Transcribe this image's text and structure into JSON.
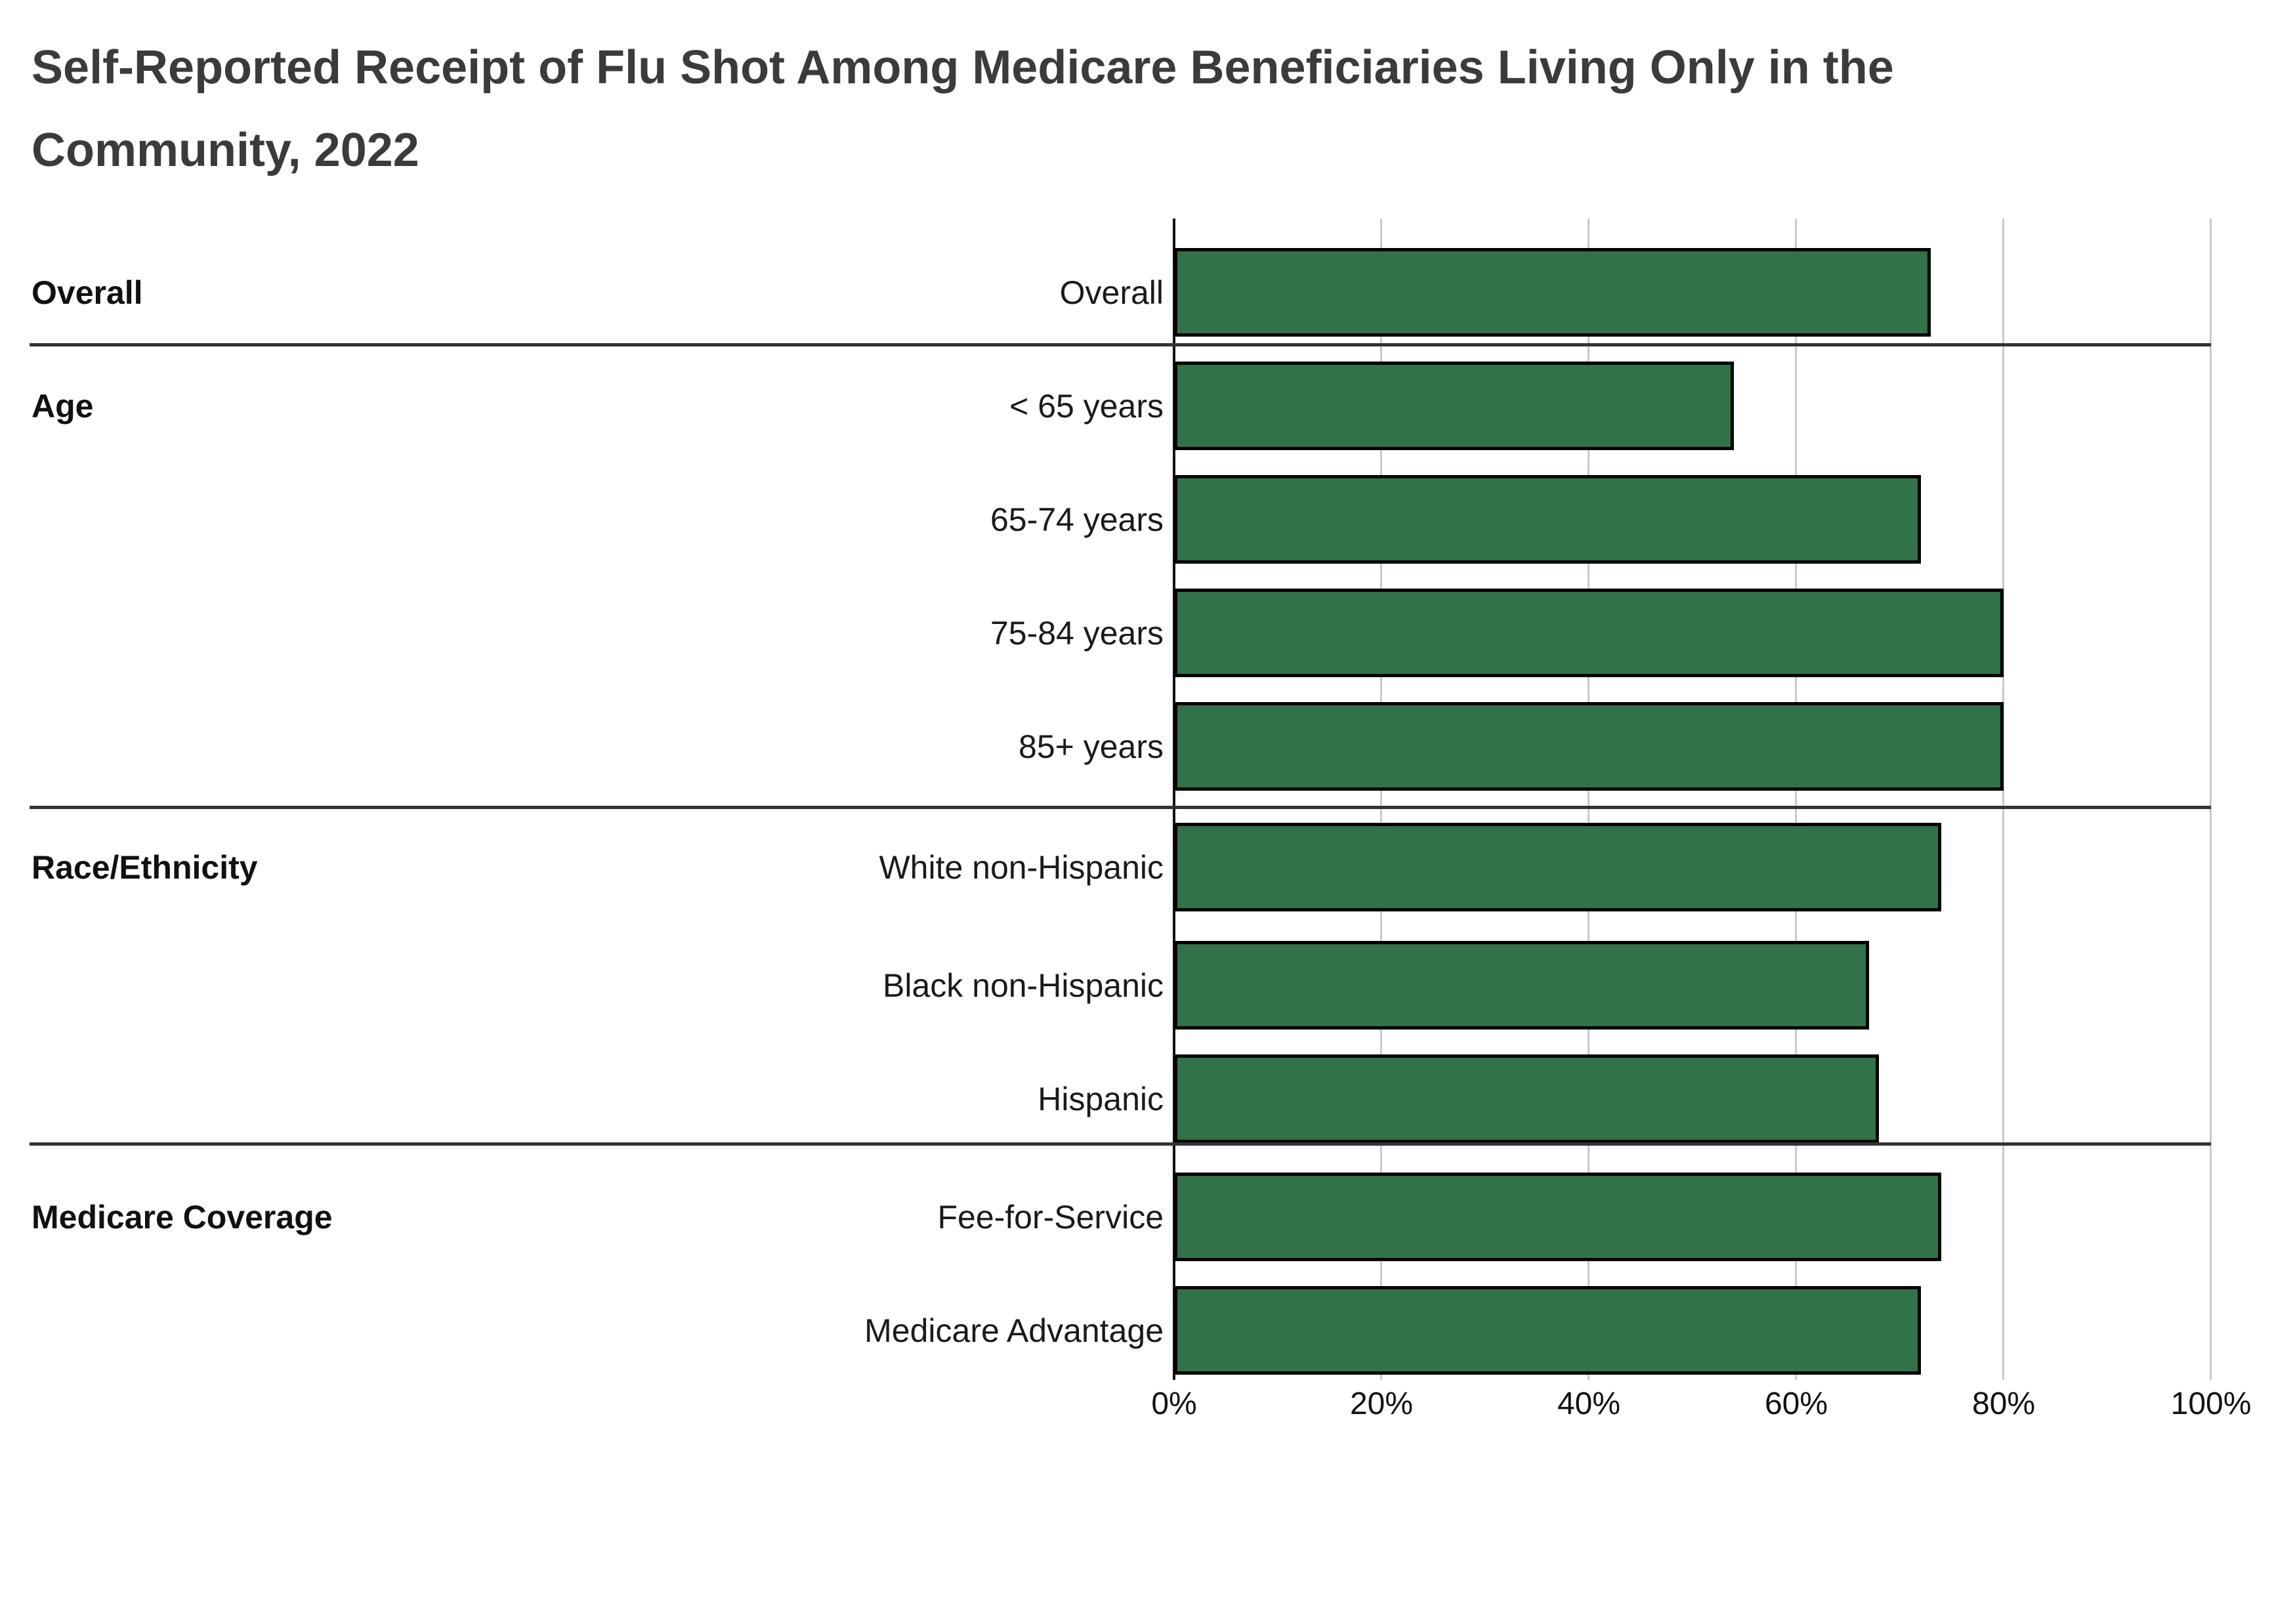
{
  "title": "Self-Reported Receipt of Flu Shot Among Medicare Beneficiaries Living Only in the Community, 2022",
  "title_lines": [
    "Self-Reported Receipt of Flu Shot Among Medicare Beneficiaries Living Only in the",
    "Community, 2022"
  ],
  "chart_data": {
    "type": "bar",
    "orientation": "horizontal",
    "title": "Self-Reported Receipt of Flu Shot Among Medicare Beneficiaries Living Only in the Community, 2022",
    "groups": [
      {
        "label": "Overall",
        "categories": [
          "Overall"
        ],
        "values": [
          73
        ]
      },
      {
        "label": "Age",
        "categories": [
          "< 65 years",
          "65-74 years",
          "75-84 years",
          "85+ years"
        ],
        "values": [
          54,
          72,
          80,
          80
        ]
      },
      {
        "label": "Race/Ethnicity",
        "categories": [
          "White non-Hispanic",
          "Black non-Hispanic",
          "Hispanic"
        ],
        "values": [
          74,
          67,
          68
        ]
      },
      {
        "label": "Medicare Coverage",
        "categories": [
          "Fee-for-Service",
          "Medicare Advantage"
        ],
        "values": [
          74,
          72
        ]
      }
    ],
    "categories": [
      "Overall",
      "< 65 years",
      "65-74 years",
      "75-84 years",
      "85+ years",
      "White non-Hispanic",
      "Black non-Hispanic",
      "Hispanic",
      "Fee-for-Service",
      "Medicare Advantage"
    ],
    "values": [
      73,
      54,
      72,
      80,
      80,
      74,
      67,
      68,
      74,
      72
    ],
    "unit": "%",
    "x_ticks": [
      "0%",
      "20%",
      "40%",
      "60%",
      "80%",
      "100%"
    ],
    "xlim": [
      0,
      100
    ],
    "xlabel": "",
    "ylabel": "",
    "grid": "vertical",
    "legend_position": "none",
    "bar_color": "#327248",
    "bar_border_color": "#000000",
    "gridline_color": "#c9c9c9",
    "divider_color": "#333333",
    "title_color": "#3b3b3b"
  }
}
